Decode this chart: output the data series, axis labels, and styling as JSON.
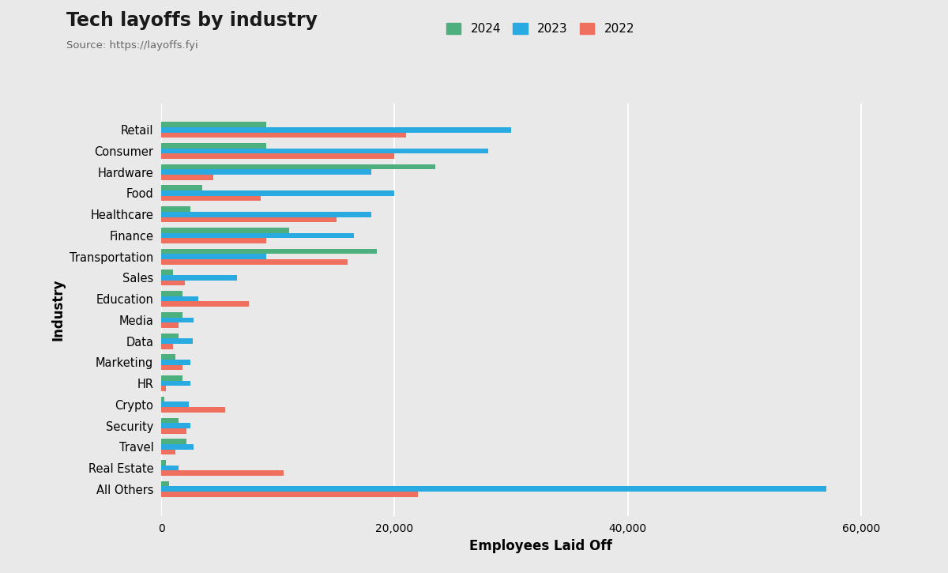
{
  "title": "Tech layoffs by industry",
  "subtitle": "Source: https://layoffs.fyi",
  "xlabel": "Employees Laid Off",
  "ylabel": "Industry",
  "background_color": "#e9e9e9",
  "legend_labels": [
    "2024",
    "2023",
    "2022"
  ],
  "legend_colors": [
    "#4caf7d",
    "#29abe2",
    "#f07060"
  ],
  "bar_height": 0.25,
  "xlim": [
    0,
    65000
  ],
  "xticks": [
    0,
    20000,
    40000,
    60000
  ],
  "xtick_labels": [
    "0",
    "20,000",
    "40,000",
    "60,000"
  ],
  "categories": [
    "All Others",
    "Real Estate",
    "Travel",
    "Security",
    "Crypto",
    "HR",
    "Marketing",
    "Data",
    "Media",
    "Education",
    "Sales",
    "Transportation",
    "Finance",
    "Healthcare",
    "Food",
    "Hardware",
    "Consumer",
    "Retail"
  ],
  "values_2024": [
    700,
    400,
    2200,
    1500,
    300,
    1800,
    1200,
    1500,
    1800,
    1800,
    1000,
    18500,
    11000,
    2500,
    3500,
    23500,
    9000,
    9000
  ],
  "values_2023": [
    57000,
    1500,
    2800,
    2500,
    2400,
    2500,
    2500,
    2700,
    2800,
    3200,
    6500,
    9000,
    16500,
    18000,
    20000,
    18000,
    28000,
    30000
  ],
  "values_2022": [
    22000,
    10500,
    1200,
    2200,
    5500,
    400,
    1800,
    1000,
    1500,
    7500,
    2000,
    16000,
    9000,
    15000,
    8500,
    4500,
    20000,
    21000
  ]
}
